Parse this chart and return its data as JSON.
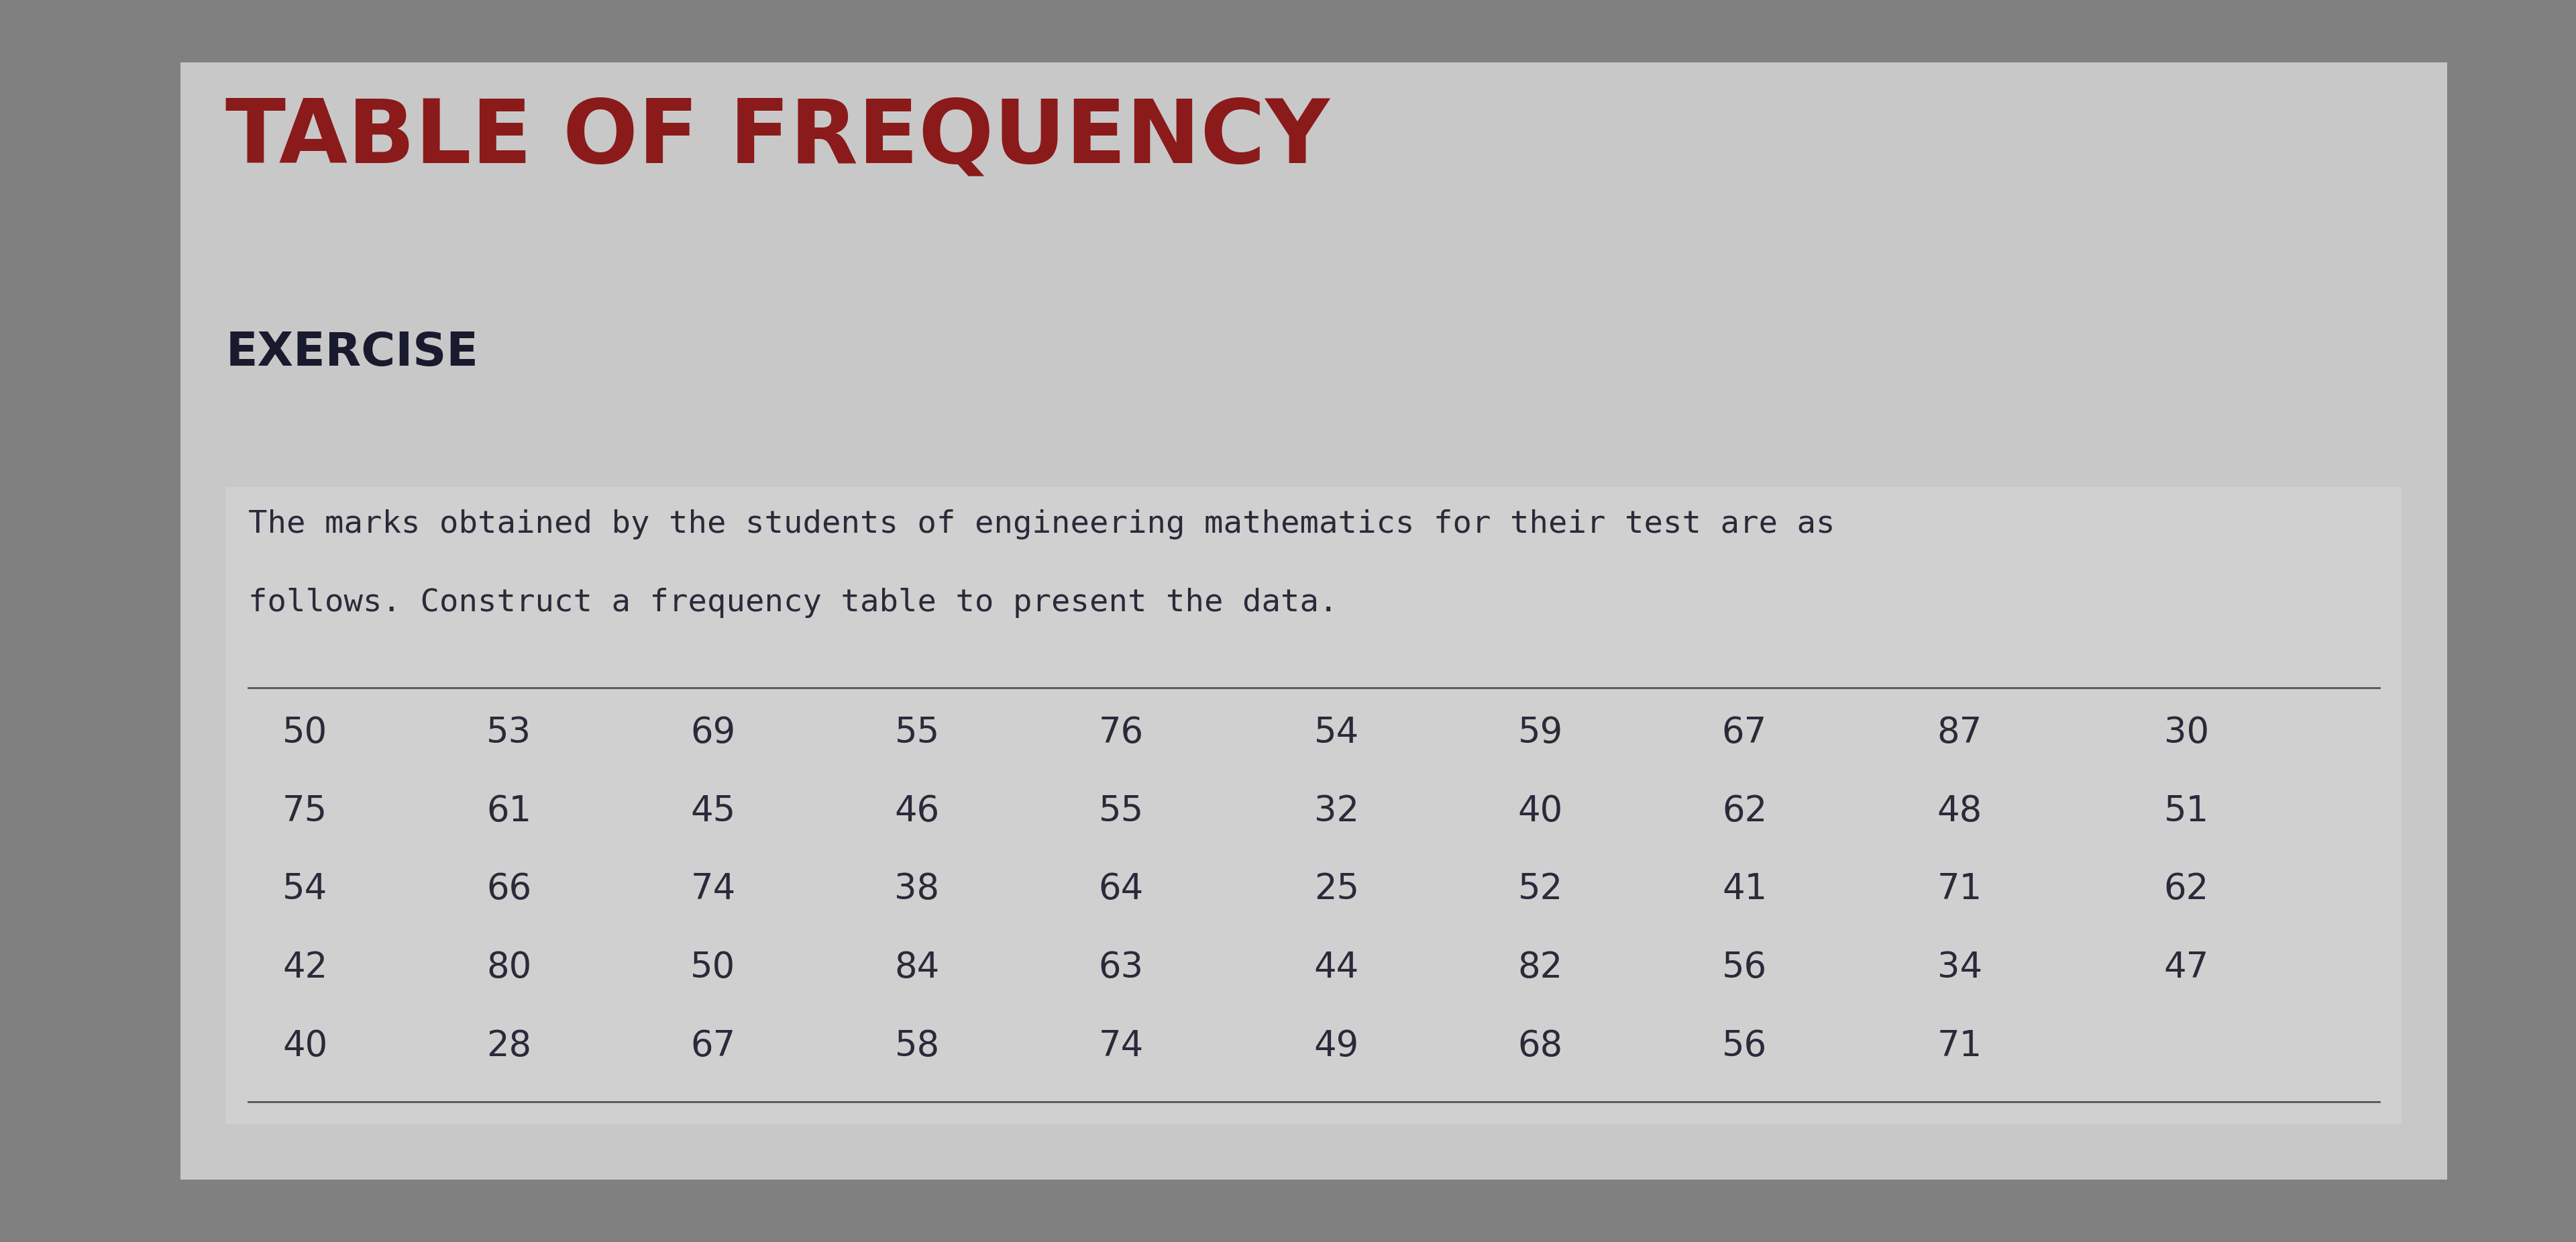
{
  "title": "TABLE OF FREQUENCY",
  "subtitle": "EXERCISE",
  "description_line1": "The marks obtained by the students of engineering mathematics for their test are as",
  "description_line2": "follows. Construct a frequency table to present the data.",
  "data_rows": [
    [
      50,
      53,
      69,
      55,
      76,
      54,
      59,
      67,
      87,
      30
    ],
    [
      75,
      61,
      45,
      46,
      55,
      32,
      40,
      62,
      48,
      51
    ],
    [
      54,
      66,
      74,
      38,
      64,
      25,
      52,
      41,
      71,
      62
    ],
    [
      42,
      80,
      50,
      84,
      63,
      44,
      82,
      56,
      34,
      47
    ],
    [
      40,
      28,
      67,
      58,
      74,
      49,
      68,
      56,
      71,
      ""
    ]
  ],
  "title_color": "#8B1A1A",
  "subtitle_color": "#1a1a2e",
  "desc_color": "#2a2a3a",
  "data_color": "#2a2a3a",
  "bg_outer": "#808080",
  "bg_inner": "#c8c8c8",
  "bg_content": "#d0d0d0",
  "line_color": "#555555",
  "title_fontsize": 95,
  "subtitle_fontsize": 50,
  "desc_fontsize": 34,
  "data_fontsize": 38
}
